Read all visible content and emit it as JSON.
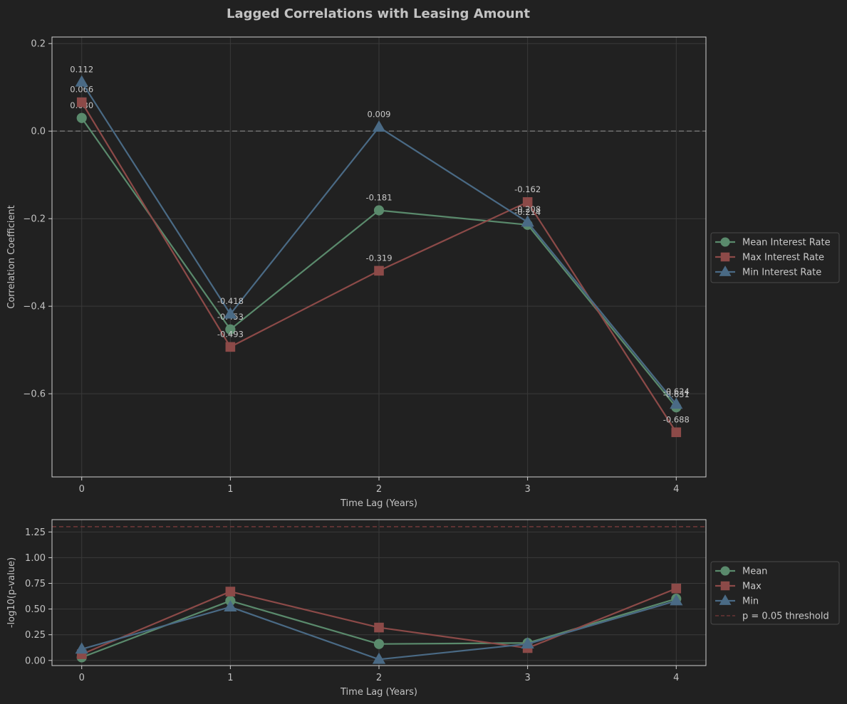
{
  "title": "Lagged Correlations with Leasing Amount",
  "chart_data": [
    {
      "type": "line",
      "x": [
        0,
        1,
        2,
        3,
        4
      ],
      "xlabel": "Time Lag (Years)",
      "ylabel": "Correlation Coefficient",
      "xlim": [
        -0.2,
        4.2
      ],
      "ylim": [
        -0.79,
        0.215
      ],
      "xticks": [
        "0",
        "1",
        "2",
        "3",
        "4"
      ],
      "yticks": [
        {
          "value": 0.2,
          "label": "0.2"
        },
        {
          "value": 0.0,
          "label": "0.0"
        },
        {
          "value": -0.2,
          "label": "−0.2"
        },
        {
          "value": -0.4,
          "label": "−0.4"
        },
        {
          "value": -0.6,
          "label": "−0.6"
        }
      ],
      "grid": true,
      "legend_placement": "outside-right",
      "zero_line": {
        "value": 0,
        "color": "#6b6b6b"
      },
      "series": [
        {
          "name": "Mean Interest Rate",
          "color": "#5a8a6c",
          "marker": "circle",
          "values": [
            0.03,
            -0.453,
            -0.181,
            -0.214,
            -0.631
          ],
          "labels": [
            "0.030",
            "-0.453",
            "-0.181",
            "-0.214",
            "-0.631"
          ]
        },
        {
          "name": "Max Interest Rate",
          "color": "#8c4a48",
          "marker": "square",
          "values": [
            0.066,
            -0.493,
            -0.319,
            -0.162,
            -0.688
          ],
          "labels": [
            "0.066",
            "-0.493",
            "-0.319",
            "-0.162",
            "-0.688"
          ]
        },
        {
          "name": "Min Interest Rate",
          "color": "#4a6a85",
          "marker": "triangle",
          "values": [
            0.112,
            -0.418,
            0.009,
            -0.208,
            -0.624
          ],
          "labels": [
            "0.112",
            "-0.418",
            "0.009",
            "-0.208",
            "-0.624"
          ]
        }
      ]
    },
    {
      "type": "line",
      "x": [
        0,
        1,
        2,
        3,
        4
      ],
      "xlabel": "Time Lag (Years)",
      "ylabel": "-log10(p-value)",
      "xlim": [
        -0.2,
        4.2
      ],
      "ylim": [
        -0.05,
        1.37
      ],
      "xticks": [
        "0",
        "1",
        "2",
        "3",
        "4"
      ],
      "yticks": [
        {
          "value": 1.25,
          "label": "1.25"
        },
        {
          "value": 1.0,
          "label": "1.00"
        },
        {
          "value": 0.75,
          "label": "0.75"
        },
        {
          "value": 0.5,
          "label": "0.50"
        },
        {
          "value": 0.25,
          "label": "0.25"
        },
        {
          "value": 0.0,
          "label": "0.00"
        }
      ],
      "grid": true,
      "legend_placement": "outside-right",
      "threshold": {
        "name": "p = 0.05 threshold",
        "value": 1.301,
        "color": "#7a3a3a"
      },
      "series": [
        {
          "name": "Mean",
          "color": "#5a8a6c",
          "marker": "circle",
          "values": [
            0.03,
            0.58,
            0.16,
            0.17,
            0.6
          ]
        },
        {
          "name": "Max",
          "color": "#8c4a48",
          "marker": "square",
          "values": [
            0.06,
            0.67,
            0.32,
            0.12,
            0.7
          ]
        },
        {
          "name": "Min",
          "color": "#4a6a85",
          "marker": "triangle",
          "values": [
            0.11,
            0.52,
            0.01,
            0.16,
            0.58
          ]
        }
      ]
    }
  ]
}
